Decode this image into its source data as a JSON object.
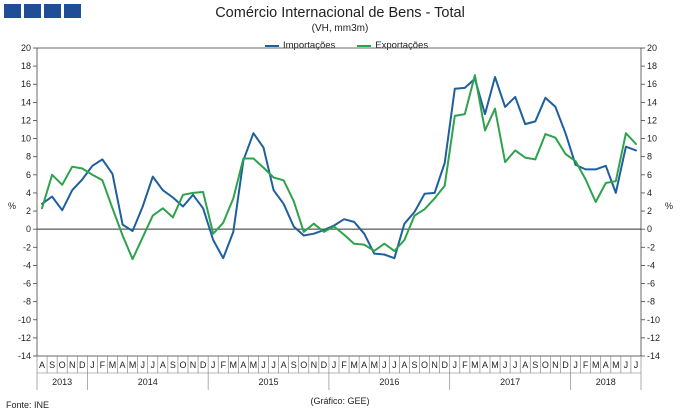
{
  "header": {
    "logo_icon": "ine-squares-logo",
    "logo_color": "#1f4e96",
    "title": "Comércio Internacional de Bens - Total",
    "subtitle": "(VH, mm3m)"
  },
  "footer": {
    "source": "Fonte: INE",
    "credit": "(Gráfico: GEE)"
  },
  "chart_data": {
    "type": "line",
    "title": "Comércio Internacional de Bens - Total",
    "subtitle": "(VH, mm3m)",
    "ylabel_left": "%",
    "ylabel_right": "%",
    "ylim": [
      -14,
      20
    ],
    "yticks": [
      -14,
      -12,
      -10,
      -8,
      -6,
      -4,
      -2,
      0,
      2,
      4,
      6,
      8,
      10,
      12,
      14,
      16,
      18,
      20
    ],
    "grid": false,
    "legend_position": "top-center",
    "x": [
      "2013-08",
      "2013-09",
      "2013-10",
      "2013-11",
      "2013-12",
      "2014-01",
      "2014-02",
      "2014-03",
      "2014-04",
      "2014-05",
      "2014-06",
      "2014-07",
      "2014-08",
      "2014-09",
      "2014-10",
      "2014-11",
      "2014-12",
      "2015-01",
      "2015-02",
      "2015-03",
      "2015-04",
      "2015-05",
      "2015-06",
      "2015-07",
      "2015-08",
      "2015-09",
      "2015-10",
      "2015-11",
      "2015-12",
      "2016-01",
      "2016-02",
      "2016-03",
      "2016-04",
      "2016-05",
      "2016-06",
      "2016-07",
      "2016-08",
      "2016-09",
      "2016-10",
      "2016-11",
      "2016-12",
      "2017-01",
      "2017-02",
      "2017-03",
      "2017-04",
      "2017-05",
      "2017-06",
      "2017-07",
      "2017-08",
      "2017-09",
      "2017-10",
      "2017-11",
      "2017-12",
      "2018-01",
      "2018-02",
      "2018-03",
      "2018-04",
      "2018-05",
      "2018-06",
      "2018-07"
    ],
    "month_labels": [
      "A",
      "S",
      "O",
      "N",
      "D",
      "J",
      "F",
      "M",
      "A",
      "M",
      "J",
      "J",
      "A",
      "S",
      "O",
      "N",
      "D",
      "J",
      "F",
      "M",
      "A",
      "M",
      "J",
      "J",
      "A",
      "S",
      "O",
      "N",
      "D",
      "J",
      "F",
      "M",
      "A",
      "M",
      "J",
      "J",
      "A",
      "S",
      "O",
      "N",
      "D",
      "J",
      "F",
      "M",
      "A",
      "M",
      "J",
      "J",
      "A",
      "S",
      "O",
      "N",
      "D",
      "J",
      "F",
      "M",
      "A",
      "M",
      "J",
      "J"
    ],
    "year_labels": [
      {
        "label": "2013",
        "start": 0,
        "end": 4
      },
      {
        "label": "2014",
        "start": 5,
        "end": 16
      },
      {
        "label": "2015",
        "start": 17,
        "end": 28
      },
      {
        "label": "2016",
        "start": 29,
        "end": 40
      },
      {
        "label": "2017",
        "start": 41,
        "end": 52
      },
      {
        "label": "2018",
        "start": 53,
        "end": 59
      }
    ],
    "series": [
      {
        "name": "Importações",
        "color": "#1f5f9e",
        "values": [
          2.8,
          3.6,
          2.1,
          4.3,
          5.5,
          7.0,
          7.7,
          6.1,
          0.5,
          -0.2,
          2.5,
          5.8,
          4.3,
          3.5,
          2.5,
          3.8,
          2.3,
          -1.2,
          -3.2,
          -0.3,
          7.6,
          10.6,
          9.0,
          4.3,
          2.8,
          0.3,
          -0.7,
          -0.5,
          -0.1,
          0.4,
          1.1,
          0.8,
          -0.5,
          -2.7,
          -2.8,
          -3.2,
          0.6,
          1.9,
          3.9,
          4.0,
          7.3,
          15.5,
          15.6,
          16.6,
          12.7,
          16.8,
          13.5,
          14.6,
          11.6,
          11.9,
          14.5,
          13.5,
          10.6,
          7.1,
          6.6,
          6.6,
          7.0,
          4.0,
          9.1,
          8.7
        ]
      },
      {
        "name": "Exportações",
        "color": "#2ea24c",
        "values": [
          2.3,
          6.0,
          4.9,
          6.9,
          6.7,
          6.0,
          5.4,
          2.3,
          -0.7,
          -3.3,
          -0.9,
          1.5,
          2.3,
          1.3,
          3.8,
          4.0,
          4.1,
          -0.5,
          0.7,
          3.4,
          7.8,
          7.8,
          6.8,
          5.7,
          5.4,
          3.1,
          -0.3,
          0.6,
          -0.3,
          0.3,
          -0.6,
          -1.6,
          -1.7,
          -2.4,
          -1.6,
          -2.4,
          -1.2,
          1.5,
          2.2,
          3.4,
          4.8,
          12.5,
          12.7,
          17.0,
          10.9,
          13.3,
          7.4,
          8.7,
          7.9,
          7.7,
          10.5,
          10.1,
          8.3,
          7.5,
          5.5,
          3.0,
          5.1,
          5.3,
          10.6,
          9.4
        ]
      }
    ]
  }
}
